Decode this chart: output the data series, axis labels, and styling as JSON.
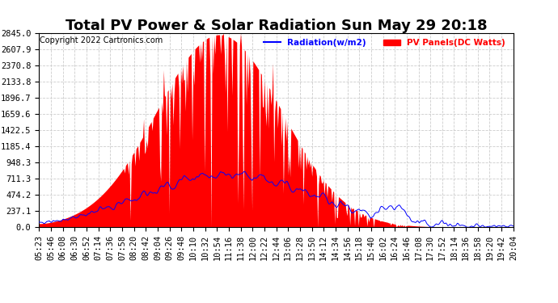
{
  "title": "Total PV Power & Solar Radiation Sun May 29 20:18",
  "copyright": "Copyright 2022 Cartronics.com",
  "legend_radiation": "Radiation(w/m2)",
  "legend_pv": "PV Panels(DC Watts)",
  "legend_radiation_color": "blue",
  "legend_pv_color": "red",
  "y_ticks": [
    0.0,
    237.1,
    474.2,
    711.3,
    948.3,
    1185.4,
    1422.5,
    1659.6,
    1896.7,
    2133.8,
    2370.8,
    2607.9,
    2845.0
  ],
  "y_max": 2845.0,
  "y_min": 0.0,
  "background_color": "#ffffff",
  "fill_color": "red",
  "line_color": "blue",
  "grid_color": "#aaaaaa",
  "title_fontsize": 13,
  "copyright_fontsize": 7,
  "tick_fontsize": 7.5,
  "x_tick_labels": [
    "05:23",
    "05:46",
    "06:08",
    "06:30",
    "06:52",
    "07:14",
    "07:36",
    "07:58",
    "08:20",
    "08:42",
    "09:04",
    "09:26",
    "09:48",
    "10:10",
    "10:32",
    "10:54",
    "11:16",
    "11:38",
    "12:00",
    "12:22",
    "12:44",
    "13:06",
    "13:28",
    "13:50",
    "14:12",
    "14:34",
    "14:56",
    "15:18",
    "15:40",
    "16:02",
    "16:24",
    "16:46",
    "17:08",
    "17:30",
    "17:52",
    "18:14",
    "18:36",
    "18:58",
    "19:20",
    "19:42",
    "20:04"
  ]
}
